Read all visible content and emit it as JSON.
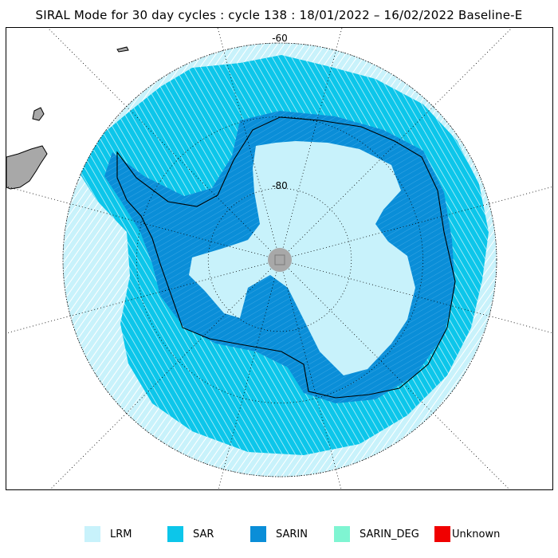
{
  "title": "SIRAL Mode for 30 day cycles : cycle 138 : 18/01/2022 – 16/02/2022 Baseline-E",
  "map": {
    "projection": "south-polar-stereographic",
    "latitude_labels": [
      "-60",
      "-80"
    ]
  },
  "legend": [
    {
      "label": "LRM",
      "color": "#c8f2fb"
    },
    {
      "label": "SAR",
      "color": "#0cc6ea"
    },
    {
      "label": "SARIN",
      "color": "#0a8ed8"
    },
    {
      "label": "SARIN_DEG",
      "color": "#7ff5d2"
    },
    {
      "label": "Unknown",
      "color": "#f00000"
    }
  ],
  "colors": {
    "land": "#a8a8a8",
    "pole_hole": "#a8a8a8",
    "coastline": "#000000",
    "graticule": "#000000"
  }
}
